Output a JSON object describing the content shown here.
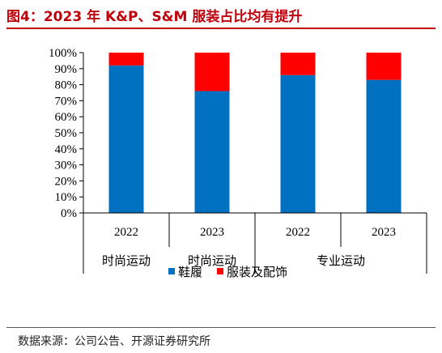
{
  "figure": {
    "title": "图4：2023 年 K&P、S&M 服装占比均有提升",
    "source": "数据来源：公司公告、开源证券研究所"
  },
  "chart_data": {
    "type": "bar",
    "stacked": true,
    "categories": [
      "2022",
      "2023",
      "2022",
      "2023"
    ],
    "groups": [
      {
        "label": "时尚运动",
        "categories": [
          "2022",
          "2023"
        ]
      },
      {
        "label": "时尚运动",
        "categories": []
      },
      {
        "label": "专业运动",
        "categories": [
          "2022",
          "2023"
        ]
      }
    ],
    "series": [
      {
        "name": "鞋履",
        "color": "#0070c0",
        "values": [
          92,
          76,
          86,
          83
        ]
      },
      {
        "name": "服装及配饰",
        "color": "#ff0000",
        "values": [
          8,
          24,
          14,
          17
        ]
      }
    ],
    "y_ticks": [
      "0%",
      "10%",
      "20%",
      "30%",
      "40%",
      "50%",
      "60%",
      "70%",
      "80%",
      "90%",
      "100%"
    ],
    "ylim": [
      0,
      100
    ],
    "grid": false,
    "legend_position": "bottom",
    "title": "",
    "xlabel": "",
    "ylabel": ""
  }
}
